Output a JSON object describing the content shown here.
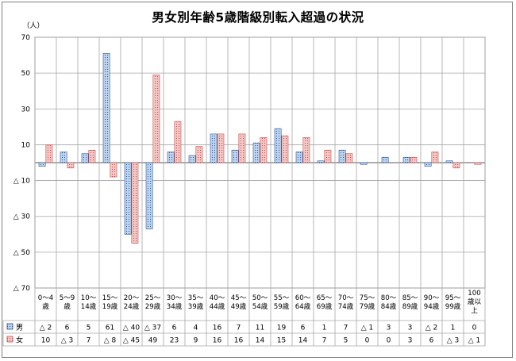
{
  "colors": {
    "male_fill": "#bcd4ee",
    "male_pattern": "#2f5597",
    "female_fill": "#f4c6c4",
    "female_pattern": "#c0504d",
    "grid": "#a6a6a6",
    "axis": "#808080"
  },
  "chart_data": {
    "type": "bar",
    "title": "男女別年齢5歳階級別転入超過の状況",
    "ylabel": "（人）",
    "ylim": [
      -70,
      70
    ],
    "yticks": [
      {
        "value": 70,
        "label": "70"
      },
      {
        "value": 50,
        "label": "50"
      },
      {
        "value": 30,
        "label": "30"
      },
      {
        "value": 10,
        "label": "10"
      },
      {
        "value": -10,
        "label": "△ 10"
      },
      {
        "value": -30,
        "label": "△ 30"
      },
      {
        "value": -50,
        "label": "△ 50"
      },
      {
        "value": -70,
        "label": "△ 70"
      }
    ],
    "grid": true,
    "categories": [
      [
        "0～4",
        "歳"
      ],
      [
        "5～9",
        "歳"
      ],
      [
        "10～",
        "14歳"
      ],
      [
        "15～",
        "19歳"
      ],
      [
        "20～",
        "24歳"
      ],
      [
        "25～",
        "29歳"
      ],
      [
        "30～",
        "34歳"
      ],
      [
        "35～",
        "39歳"
      ],
      [
        "40～",
        "44歳"
      ],
      [
        "45～",
        "49歳"
      ],
      [
        "50～",
        "54歳"
      ],
      [
        "55～",
        "59歳"
      ],
      [
        "60～",
        "64歳"
      ],
      [
        "65～",
        "69歳"
      ],
      [
        "70～",
        "74歳"
      ],
      [
        "75～",
        "79歳"
      ],
      [
        "80～",
        "84歳"
      ],
      [
        "85～",
        "89歳"
      ],
      [
        "90～",
        "94歳"
      ],
      [
        "95～",
        "99歳"
      ],
      [
        "100",
        "歳以",
        "上"
      ]
    ],
    "series": [
      {
        "name": "男",
        "values": [
          -2,
          6,
          5,
          61,
          -40,
          -37,
          6,
          4,
          16,
          7,
          11,
          19,
          6,
          1,
          7,
          -1,
          3,
          3,
          -2,
          1,
          0
        ],
        "labels": [
          "△ 2",
          "6",
          "5",
          "61",
          "△ 40",
          "△ 37",
          "6",
          "4",
          "16",
          "7",
          "11",
          "19",
          "6",
          "1",
          "7",
          "△ 1",
          "3",
          "3",
          "△ 2",
          "1",
          "0"
        ]
      },
      {
        "name": "女",
        "values": [
          10,
          -3,
          7,
          -8,
          -45,
          49,
          23,
          9,
          16,
          16,
          14,
          15,
          14,
          7,
          5,
          0,
          0,
          3,
          6,
          -3,
          -1
        ],
        "labels": [
          "10",
          "△ 3",
          "7",
          "△ 8",
          "△ 45",
          "49",
          "23",
          "9",
          "16",
          "16",
          "14",
          "15",
          "14",
          "7",
          "5",
          "0",
          "0",
          "3",
          "6",
          "△ 3",
          "△ 1"
        ]
      }
    ]
  }
}
